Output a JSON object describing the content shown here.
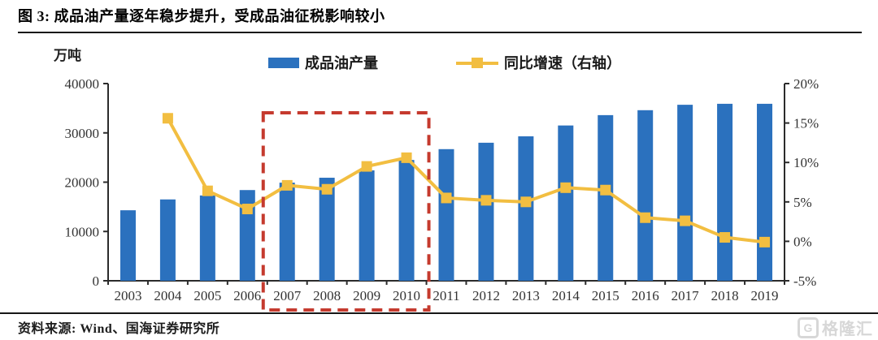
{
  "figure": {
    "title": "图 3: 成品油产量逐年稳步提升，受成品油征税影响较小",
    "source": "资料来源: Wind、国海证券研究所",
    "watermark_text": "格隆汇",
    "watermark_icon": "G"
  },
  "chart_data": {
    "type": "bar",
    "subtype": "bar+line-dual-axis",
    "unit_label": "万吨",
    "categories": [
      "2003",
      "2004",
      "2005",
      "2006",
      "2007",
      "2008",
      "2009",
      "2010",
      "2011",
      "2012",
      "2013",
      "2014",
      "2015",
      "2016",
      "2017",
      "2018",
      "2019"
    ],
    "series": [
      {
        "name": "成品油产量",
        "type": "bar",
        "axis": "left",
        "color": "#2B71BE",
        "values": [
          14300,
          16500,
          17300,
          18400,
          19900,
          20900,
          22400,
          24500,
          26700,
          28000,
          29300,
          31500,
          33600,
          34600,
          35700,
          35900,
          35900
        ]
      },
      {
        "name": "同比增速（右轴）",
        "type": "line",
        "axis": "right",
        "color": "#F2BE41",
        "values": [
          null,
          15.6,
          6.4,
          4.1,
          7.1,
          6.6,
          9.5,
          10.6,
          5.5,
          5.2,
          5.0,
          6.8,
          6.5,
          3.0,
          2.6,
          0.5,
          -0.1
        ]
      }
    ],
    "left_axis": {
      "range": [
        0,
        40000
      ],
      "ticks": [
        0,
        10000,
        20000,
        30000,
        40000
      ],
      "tick_labels": [
        "0",
        "10000",
        "20000",
        "30000",
        "40000"
      ]
    },
    "right_axis": {
      "range": [
        -5,
        20
      ],
      "ticks": [
        -5,
        0,
        5,
        10,
        15,
        20
      ],
      "tick_labels": [
        "-5%",
        "0%",
        "5%",
        "10%",
        "15%",
        "20%"
      ]
    },
    "highlight_box": {
      "start_category": "2007",
      "end_category": "2010",
      "color": "#C53A2E"
    },
    "legend_position": "top-center",
    "grid": false,
    "axis_color": "#2b2b2b",
    "tick_label_color": "#333333"
  }
}
